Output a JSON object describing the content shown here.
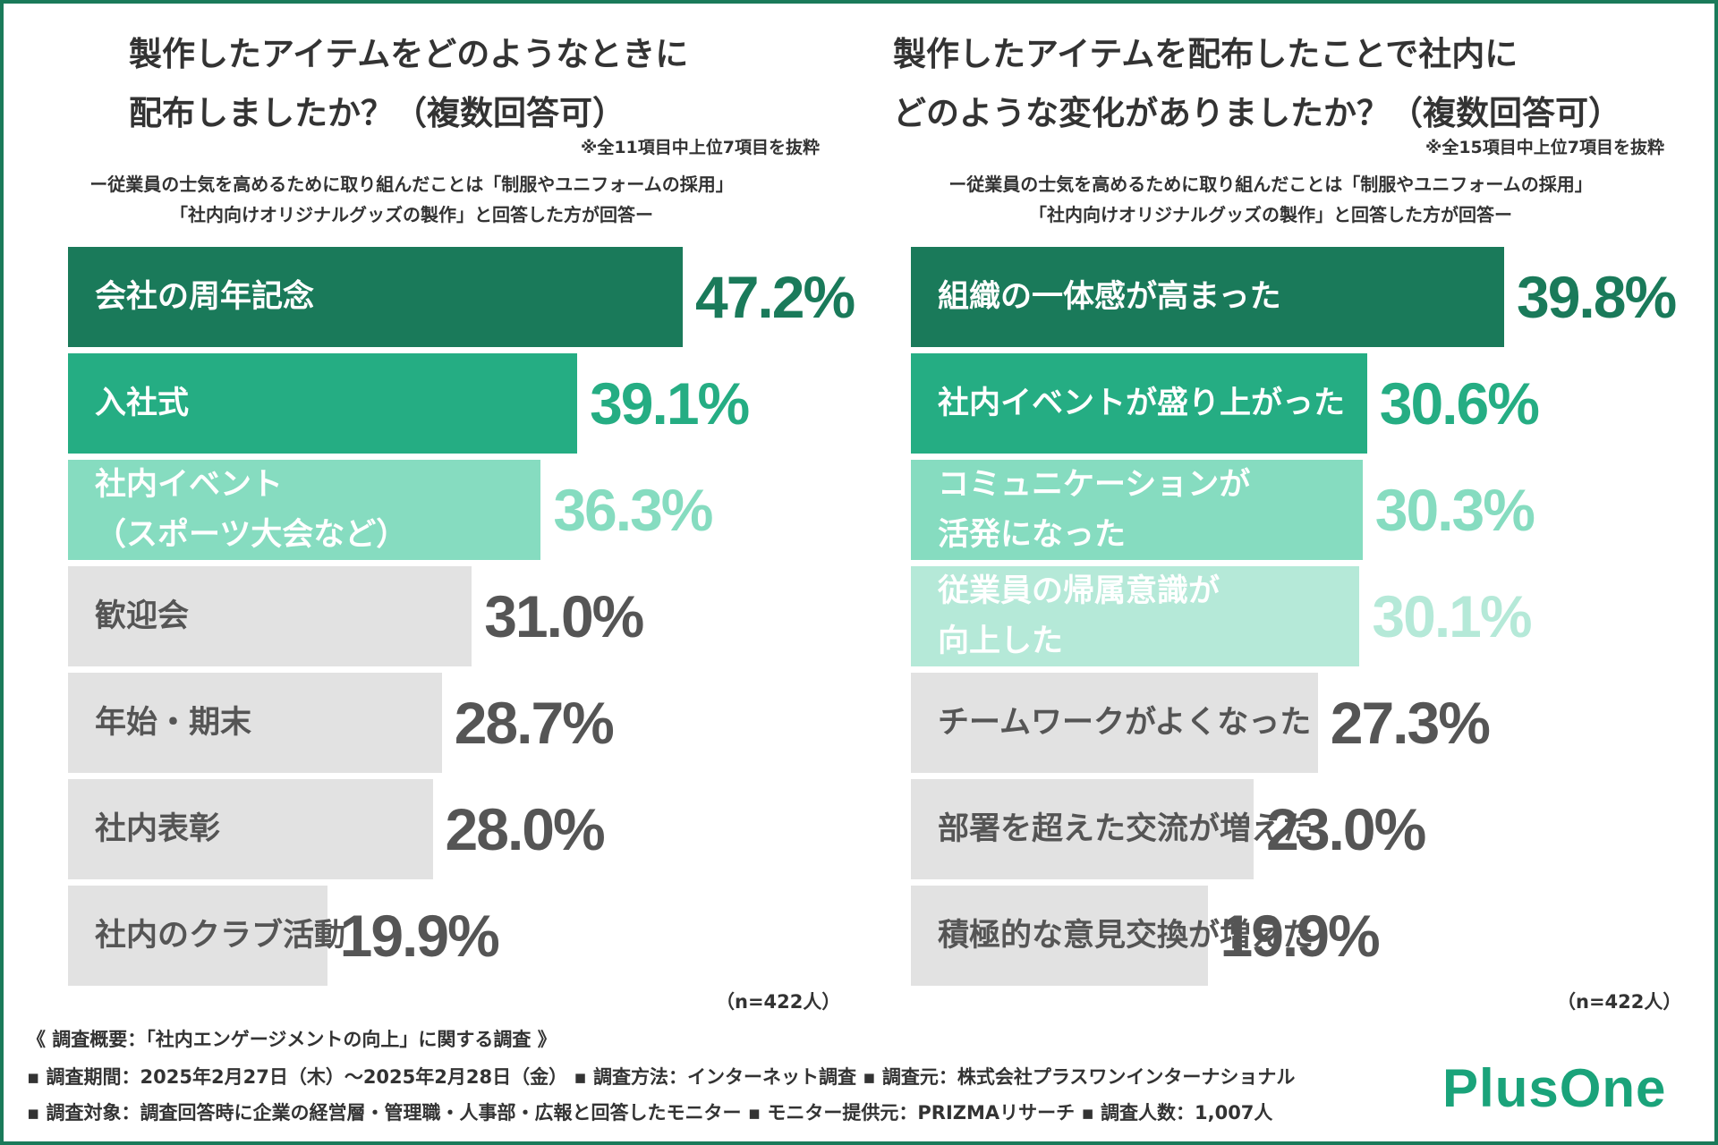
{
  "colors": {
    "border": "#1a7a5a",
    "dark_green": "#1a7a5a",
    "mid_green": "#25ad83",
    "light_green": "#86dcc0",
    "pale_green": "#b5e9d8",
    "gray": "#e2e2e2",
    "gray_text": "#555555"
  },
  "chart_data": [
    {
      "type": "bar",
      "orientation": "horizontal",
      "title_line1": "製作したアイテムをどのようなときに",
      "title_line2": "配布しましたか？（複数回答可）",
      "note": "※全11項目中上位7項目を抜粋",
      "subtitle_line1": "ー従業員の士気を高めるために取り組んだことは「制服やユニフォームの採用」",
      "subtitle_line2": "「社内向けオリジナルグッズの製作」と回答した方が回答ー",
      "categories": [
        "会社の周年記念",
        "入社式",
        "社内イベント\n（スポーツ大会など）",
        "歓迎会",
        "年始・期末",
        "社内表彰",
        "社内のクラブ活動"
      ],
      "values": [
        47.2,
        39.1,
        36.3,
        31.0,
        28.7,
        28.0,
        19.9
      ],
      "value_labels": [
        "47.2%",
        "39.1%",
        "36.3%",
        "31.0%",
        "28.7%",
        "28.0%",
        "19.9%"
      ],
      "n": "（n=422人）"
    },
    {
      "type": "bar",
      "orientation": "horizontal",
      "title_line1": "製作したアイテムを配布したことで社内に",
      "title_line2": "どのような変化がありましたか？（複数回答可）",
      "note": "※全15項目中上位7項目を抜粋",
      "subtitle_line1": "ー従業員の士気を高めるために取り組んだことは「制服やユニフォームの採用」",
      "subtitle_line2": "「社内向けオリジナルグッズの製作」と回答した方が回答ー",
      "categories": [
        "組織の一体感が高まった",
        "社内イベントが盛り上がった",
        "コミュニケーションが\n活発になった",
        "従業員の帰属意識が\n向上した",
        "チームワークがよくなった",
        "部署を超えた交流が増えた",
        "積極的な意見交換が増えた"
      ],
      "values": [
        39.8,
        30.6,
        30.3,
        30.1,
        27.3,
        23.0,
        19.9
      ],
      "value_labels": [
        "39.8%",
        "30.6%",
        "30.3%",
        "30.1%",
        "27.3%",
        "23.0%",
        "19.9%"
      ],
      "n": "（n=422人）"
    }
  ],
  "footer": {
    "line1": "《 調査概要：「社内エンゲージメントの向上」に関する調査 》",
    "line2": "▪ 調査期間：2025年2月27日（木）～2025年2月28日（金） ▪ 調査方法：インターネット調査 ▪ 調査元：株式会社プラスワンインターナショナル",
    "line3": "▪ 調査対象：調査回答時に企業の経営層・管理職・人事部・広報と回答したモニター ▪ モニター提供元：PRIZMAリサーチ ▪ 調査人数：1,007人"
  },
  "logo": "PlusOne"
}
